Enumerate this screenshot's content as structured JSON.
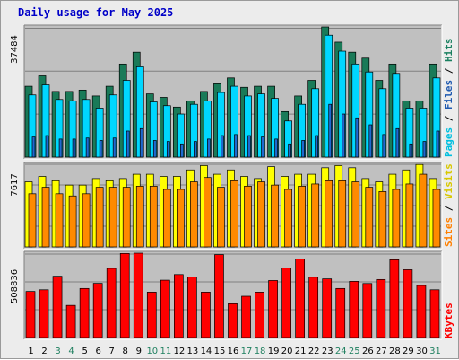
{
  "title": "Daily usage for May 2025",
  "colors": {
    "pages": "#3fc8ee",
    "files": "#1a7a58",
    "hits": "#00d7ff",
    "sites": "#ff8a00",
    "visits": "#ffff00",
    "kbytes": "#ff0000",
    "weekday_label": "#000000",
    "weekend_label": "#208060",
    "legend_pages": "#00c0e0",
    "legend_files": "#1f5ab0",
    "legend_hits": "#1a8060",
    "legend_sites": "#ff8000",
    "legend_visits": "#d8c800",
    "legend_kbytes": "#ff0000",
    "title": "#0000c8"
  },
  "chart_data": [
    {
      "type": "bar",
      "title": "Daily usage for May 2025",
      "legend": [
        "Pages",
        "Files",
        "Hits"
      ],
      "max_label": "37484",
      "ylim": [
        0,
        37484
      ],
      "categories": [
        "1",
        "2",
        "3",
        "4",
        "5",
        "6",
        "7",
        "8",
        "9",
        "10",
        "11",
        "12",
        "13",
        "14",
        "15",
        "16",
        "17",
        "18",
        "19",
        "20",
        "21",
        "22",
        "23",
        "24",
        "25",
        "26",
        "27",
        "28",
        "29",
        "30",
        "31"
      ],
      "series": [
        {
          "name": "Hits",
          "values": [
            20400,
            23400,
            18900,
            18900,
            19300,
            17600,
            20400,
            26800,
            30200,
            18200,
            17200,
            14400,
            16200,
            18900,
            21100,
            22800,
            20100,
            20400,
            20400,
            13100,
            17600,
            22100,
            37484,
            33100,
            30200,
            28500,
            22100,
            26800,
            16200,
            16200,
            26800
          ]
        },
        {
          "name": "Files",
          "values": [
            17900,
            20800,
            16600,
            16200,
            16600,
            14100,
            17900,
            22100,
            26000,
            15900,
            14800,
            12400,
            15200,
            16200,
            18600,
            20400,
            17600,
            18200,
            16900,
            10400,
            15200,
            19700,
            35100,
            30500,
            26800,
            24500,
            19700,
            24100,
            14100,
            14100,
            22800
          ]
        },
        {
          "name": "Pages",
          "values": [
            5800,
            6200,
            5200,
            5200,
            5500,
            4800,
            5500,
            7500,
            8200,
            4800,
            4500,
            3800,
            4500,
            5200,
            6200,
            6500,
            6200,
            5800,
            5200,
            3800,
            4800,
            6200,
            15200,
            12400,
            11300,
            9300,
            6500,
            8200,
            3800,
            4500,
            7500
          ]
        }
      ]
    },
    {
      "type": "bar",
      "legend": [
        "Sites",
        "Visits"
      ],
      "max_label": "7617",
      "ylim": [
        0,
        7617
      ],
      "categories": [
        "1",
        "2",
        "3",
        "4",
        "5",
        "6",
        "7",
        "8",
        "9",
        "10",
        "11",
        "12",
        "13",
        "14",
        "15",
        "16",
        "17",
        "18",
        "19",
        "20",
        "21",
        "22",
        "23",
        "24",
        "25",
        "26",
        "27",
        "28",
        "29",
        "30",
        "31"
      ],
      "series": [
        {
          "name": "Visits",
          "values": [
            6000,
            6500,
            6100,
            5700,
            5700,
            6300,
            6100,
            6300,
            6700,
            6700,
            6500,
            6500,
            7100,
            7500,
            6700,
            7100,
            6500,
            6300,
            7400,
            6500,
            6700,
            6700,
            7300,
            7500,
            7300,
            6300,
            6000,
            6700,
            7100,
            7600,
            6300
          ]
        },
        {
          "name": "Sites",
          "values": [
            4900,
            5500,
            4900,
            4700,
            4900,
            5500,
            5500,
            5500,
            5600,
            5600,
            5300,
            5300,
            6000,
            6400,
            5500,
            6100,
            5600,
            6000,
            5700,
            5300,
            5600,
            5800,
            6100,
            6100,
            6000,
            5500,
            5100,
            5300,
            5800,
            6700,
            5300
          ]
        }
      ]
    },
    {
      "type": "bar",
      "legend": [
        "KBytes"
      ],
      "max_label": "508836",
      "ylim": [
        0,
        508836
      ],
      "categories": [
        "1",
        "2",
        "3",
        "4",
        "5",
        "6",
        "7",
        "8",
        "9",
        "10",
        "11",
        "12",
        "13",
        "14",
        "15",
        "16",
        "17",
        "18",
        "19",
        "20",
        "21",
        "22",
        "23",
        "24",
        "25",
        "26",
        "27",
        "28",
        "29",
        "30",
        "31"
      ],
      "series": [
        {
          "name": "KBytes",
          "values": [
            278000,
            288000,
            370000,
            194000,
            296000,
            327000,
            417000,
            507000,
            508836,
            274000,
            346000,
            380000,
            365000,
            274000,
            500000,
            204000,
            249000,
            274000,
            344000,
            419000,
            474000,
            364000,
            354000,
            296000,
            339000,
            326000,
            350000,
            469000,
            409000,
            314000,
            288000
          ]
        }
      ]
    }
  ],
  "weekend_days": [
    3,
    4,
    10,
    11,
    17,
    18,
    24,
    25,
    31
  ]
}
